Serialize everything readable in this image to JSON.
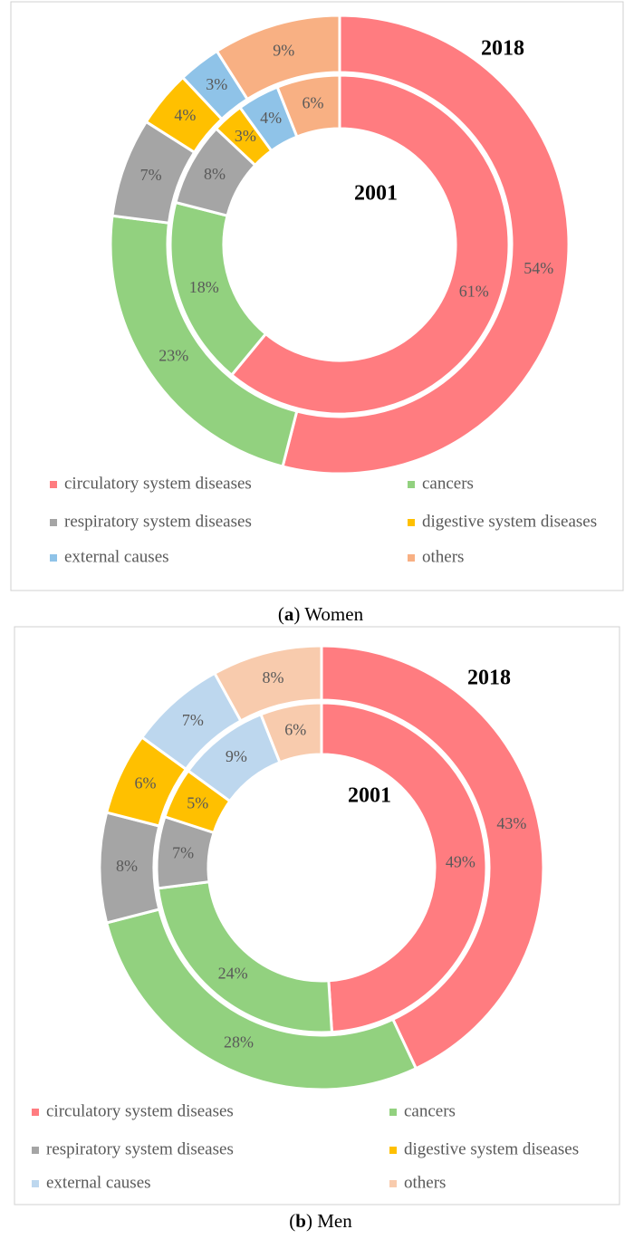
{
  "chart_data": [
    {
      "type": "donut",
      "categories": [
        "circulatory system diseases",
        "cancers",
        "respiratory system diseases",
        "digestive system diseases",
        "external causes",
        "others"
      ],
      "colors": [
        "#ff7c80",
        "#92d17f",
        "#a5a5a5",
        "#ffc000",
        "#8fc3e8",
        "#f8b083"
      ],
      "series": [
        {
          "name": "2001",
          "values": [
            61,
            18,
            8,
            3,
            4,
            6
          ],
          "value_labels": [
            "61%",
            "18%",
            "8%",
            "3%",
            "4%",
            "6%"
          ]
        },
        {
          "name": "2018",
          "values": [
            54,
            23,
            7,
            4,
            3,
            9
          ],
          "value_labels": [
            "54%",
            "23%",
            "7%",
            "4%",
            "3%",
            "9%"
          ]
        }
      ],
      "caption": [
        "(",
        "a",
        ") Women"
      ]
    },
    {
      "type": "donut",
      "categories": [
        "circulatory system diseases",
        "cancers",
        "respiratory system diseases",
        "digestive system diseases",
        "external causes",
        "others"
      ],
      "colors": [
        "#ff7c80",
        "#92d17f",
        "#a5a5a5",
        "#ffc000",
        "#bdd7ee",
        "#f8cbad"
      ],
      "series": [
        {
          "name": "2001",
          "values": [
            49,
            24,
            7,
            5,
            9,
            6
          ],
          "value_labels": [
            "49%",
            "24%",
            "7%",
            "5%",
            "9%",
            "6%"
          ]
        },
        {
          "name": "2018",
          "values": [
            43,
            28,
            8,
            6,
            7,
            8
          ],
          "value_labels": [
            "43%",
            "28%",
            "8%",
            "6%",
            "7%",
            "8%"
          ]
        }
      ],
      "caption": [
        "(",
        "b",
        ") Men"
      ]
    }
  ]
}
